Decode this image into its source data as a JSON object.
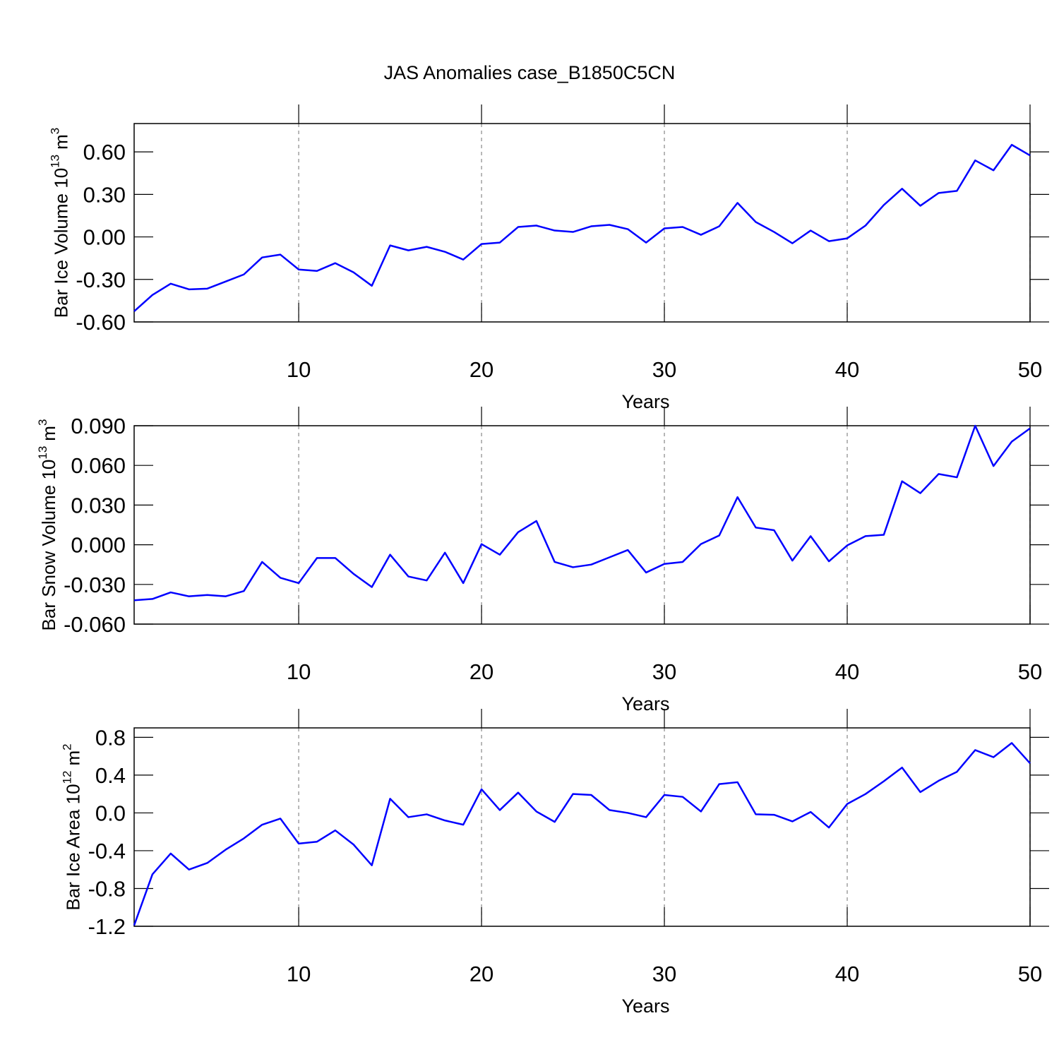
{
  "chart_data": [
    {
      "type": "line",
      "title": "JAS Anomalies case_B1850C5CN",
      "ylabel": [
        "Bar Ice Volume 10",
        "13",
        "m",
        "3"
      ],
      "xlabel": "Years",
      "x": [
        1,
        2,
        3,
        4,
        5,
        6,
        7,
        8,
        9,
        10,
        11,
        12,
        13,
        14,
        15,
        16,
        17,
        18,
        19,
        20,
        21,
        22,
        23,
        24,
        25,
        26,
        27,
        28,
        29,
        30,
        31,
        32,
        33,
        34,
        35,
        36,
        37,
        38,
        39,
        40,
        41,
        42,
        43,
        44,
        45,
        46,
        47,
        48,
        49,
        50
      ],
      "series": [
        {
          "color": "#0000ff",
          "values": [
            -0.525,
            -0.41,
            -0.33,
            -0.37,
            -0.365,
            -0.315,
            -0.265,
            -0.145,
            -0.125,
            -0.23,
            -0.24,
            -0.185,
            -0.25,
            -0.345,
            -0.06,
            -0.095,
            -0.07,
            -0.105,
            -0.16,
            -0.05,
            -0.04,
            0.07,
            0.08,
            0.045,
            0.035,
            0.075,
            0.085,
            0.055,
            -0.04,
            0.06,
            0.07,
            0.015,
            0.075,
            0.24,
            0.105,
            0.035,
            -0.045,
            0.045,
            -0.03,
            -0.01,
            0.08,
            0.225,
            0.34,
            0.22,
            0.31,
            0.325,
            0.54,
            0.47,
            0.65,
            0.575
          ]
        }
      ],
      "xlim": [
        1,
        50
      ],
      "xticks": [
        10,
        20,
        30,
        40,
        50
      ],
      "ylim": [
        -0.6,
        0.8
      ],
      "yticks": [
        {
          "value": -0.6,
          "label": "-0.60"
        },
        {
          "value": -0.3,
          "label": "-0.30"
        },
        {
          "value": 0,
          "label": "0.00"
        },
        {
          "value": 0.3,
          "label": "0.30"
        },
        {
          "value": 0.6,
          "label": "0.60"
        }
      ],
      "grid": true
    },
    {
      "type": "line",
      "ylabel": [
        "Bar Snow Volume 10",
        "13",
        "m",
        "3"
      ],
      "xlabel": "Years",
      "x": [
        1,
        2,
        3,
        4,
        5,
        6,
        7,
        8,
        9,
        10,
        11,
        12,
        13,
        14,
        15,
        16,
        17,
        18,
        19,
        20,
        21,
        22,
        23,
        24,
        25,
        26,
        27,
        28,
        29,
        30,
        31,
        32,
        33,
        34,
        35,
        36,
        37,
        38,
        39,
        40,
        41,
        42,
        43,
        44,
        45,
        46,
        47,
        48,
        49,
        50
      ],
      "series": [
        {
          "color": "#0000ff",
          "values": [
            -0.042,
            -0.041,
            -0.036,
            -0.039,
            -0.038,
            -0.039,
            -0.035,
            -0.013,
            -0.025,
            -0.029,
            -0.01,
            -0.01,
            -0.022,
            -0.032,
            -0.0075,
            -0.024,
            -0.027,
            -0.006,
            -0.029,
            0.0005,
            -0.0075,
            0.0095,
            0.018,
            -0.013,
            -0.017,
            -0.015,
            -0.0095,
            -0.004,
            -0.021,
            -0.0145,
            -0.013,
            0.0005,
            0.007,
            0.036,
            0.013,
            0.011,
            -0.012,
            0.0065,
            -0.0125,
            -0.0005,
            0.0065,
            0.0075,
            0.048,
            0.039,
            0.0535,
            0.051,
            0.09,
            0.0595,
            0.078,
            0.088
          ]
        }
      ],
      "xlim": [
        1,
        50
      ],
      "xticks": [
        10,
        20,
        30,
        40,
        50
      ],
      "ylim": [
        -0.06,
        0.09
      ],
      "yticks": [
        {
          "value": -0.06,
          "label": "-0.060"
        },
        {
          "value": -0.03,
          "label": "-0.030"
        },
        {
          "value": 0,
          "label": "0.000"
        },
        {
          "value": 0.03,
          "label": "0.030"
        },
        {
          "value": 0.06,
          "label": "0.060"
        },
        {
          "value": 0.09,
          "label": "0.090"
        }
      ],
      "grid": true
    },
    {
      "type": "line",
      "ylabel": [
        "Bar Ice Area 10",
        "12",
        "m",
        "2"
      ],
      "xlabel": "Years",
      "x": [
        1,
        2,
        3,
        4,
        5,
        6,
        7,
        8,
        9,
        10,
        11,
        12,
        13,
        14,
        15,
        16,
        17,
        18,
        19,
        20,
        21,
        22,
        23,
        24,
        25,
        26,
        27,
        28,
        29,
        30,
        31,
        32,
        33,
        34,
        35,
        36,
        37,
        38,
        39,
        40,
        41,
        42,
        43,
        44,
        45,
        46,
        47,
        48,
        49,
        50
      ],
      "series": [
        {
          "color": "#0000ff",
          "values": [
            -1.19,
            -0.65,
            -0.43,
            -0.6,
            -0.53,
            -0.39,
            -0.27,
            -0.125,
            -0.06,
            -0.325,
            -0.305,
            -0.185,
            -0.335,
            -0.555,
            0.15,
            -0.045,
            -0.015,
            -0.08,
            -0.125,
            0.25,
            0.03,
            0.215,
            0.015,
            -0.095,
            0.2,
            0.19,
            0.03,
            0,
            -0.045,
            0.19,
            0.17,
            0.015,
            0.305,
            0.325,
            -0.015,
            -0.02,
            -0.09,
            0.01,
            -0.155,
            0.095,
            0.2,
            0.335,
            0.48,
            0.22,
            0.34,
            0.435,
            0.665,
            0.59,
            0.74,
            0.525
          ]
        }
      ],
      "xlim": [
        1,
        50
      ],
      "xticks": [
        10,
        20,
        30,
        40,
        50
      ],
      "ylim": [
        -1.2,
        0.9
      ],
      "yticks": [
        -1.2,
        -0.8,
        -0.4,
        {
          "value": 0,
          "label": "0.0"
        },
        0.4,
        0.8
      ],
      "grid": true
    }
  ]
}
